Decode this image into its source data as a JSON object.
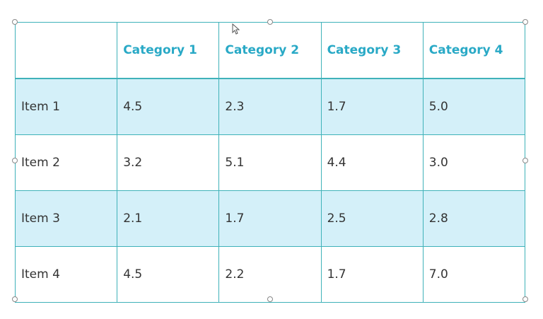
{
  "table": {
    "header": [
      "Category 1",
      "Category 2",
      "Category 3",
      "Category 4"
    ],
    "rows": [
      [
        "Item 1",
        "4.5",
        "2.3",
        "1.7",
        "5.0"
      ],
      [
        "Item 2",
        "3.2",
        "5.1",
        "4.4",
        "3.0"
      ],
      [
        "Item 3",
        "2.1",
        "1.7",
        "2.5",
        "2.8"
      ],
      [
        "Item 4",
        "4.5",
        "2.2",
        "1.7",
        "7.0"
      ]
    ]
  }
}
